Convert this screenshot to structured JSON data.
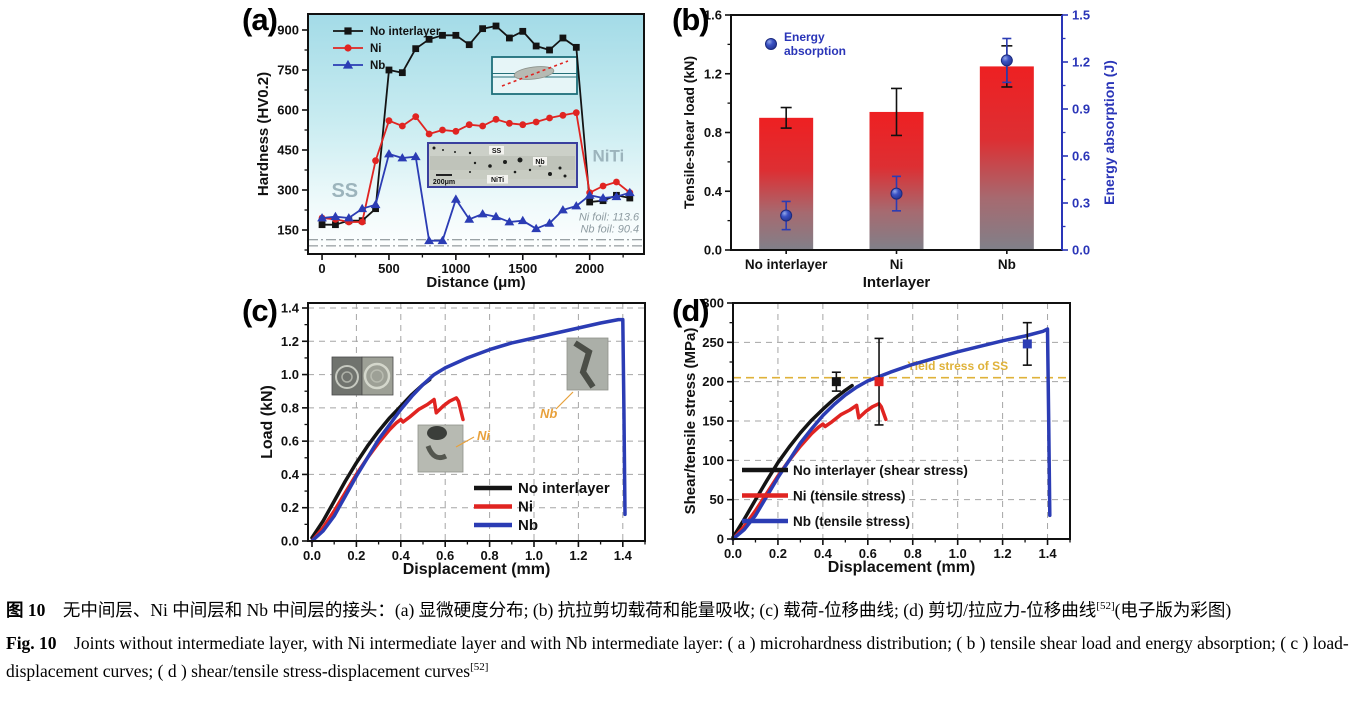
{
  "figure": {
    "panels": {
      "a": {
        "tag": "(a)"
      },
      "b": {
        "tag": "(b)"
      },
      "c": {
        "tag": "(c)"
      },
      "d": {
        "tag": "(d)"
      }
    }
  },
  "colors": {
    "series_black": "#141414",
    "series_red": "#e02421",
    "series_blue": "#2b3cb4",
    "axis_blue": "#2a35b8",
    "label_gray": "#9cb4bc",
    "foil_gray": "#8d9ba1",
    "yellow": "#dfb23a",
    "grid_gray": "#a5a5a5",
    "bar_top": "#ee2022",
    "bar_bottom": "#808089",
    "annotation_orange": "#e8a13c",
    "teal_top": "#a3dbe7"
  },
  "chart_data": [
    {
      "id": "a",
      "type": "line",
      "xlabel": "Distance (μm)",
      "ylabel": "Hardness (HV0.2)",
      "xlim": [
        -105,
        2406
      ],
      "ylim": [
        60,
        960
      ],
      "xticks": [
        "0",
        "500",
        "1000",
        "1500",
        "2000"
      ],
      "yticks": [
        "150",
        "300",
        "450",
        "600",
        "750",
        "900"
      ],
      "legend": [
        "No interlayer",
        "Ni",
        "Nb"
      ],
      "series": [
        {
          "name": "No interlayer",
          "color": "black",
          "marker": "square",
          "x": [
            0,
            100,
            200,
            300,
            400,
            500,
            600,
            700,
            800,
            900,
            1000,
            1100,
            1200,
            1300,
            1400,
            1500,
            1600,
            1700,
            1800,
            1900,
            2000,
            2100,
            2200,
            2300
          ],
          "y": [
            170,
            170,
            185,
            185,
            230,
            750,
            740,
            830,
            865,
            880,
            880,
            845,
            905,
            915,
            870,
            895,
            840,
            825,
            870,
            835,
            255,
            260,
            280,
            270
          ]
        },
        {
          "name": "Ni",
          "color": "red",
          "marker": "circle",
          "x": [
            0,
            100,
            200,
            300,
            400,
            500,
            600,
            700,
            800,
            900,
            1000,
            1100,
            1200,
            1300,
            1400,
            1500,
            1600,
            1700,
            1800,
            1900,
            2000,
            2100,
            2200,
            2300
          ],
          "y": [
            195,
            190,
            180,
            180,
            410,
            560,
            540,
            575,
            510,
            525,
            520,
            545,
            540,
            565,
            550,
            545,
            555,
            570,
            580,
            590,
            290,
            315,
            330,
            290
          ]
        },
        {
          "name": "Nb",
          "color": "blue",
          "marker": "triangle",
          "x": [
            0,
            100,
            200,
            300,
            400,
            500,
            600,
            700,
            800,
            900,
            1000,
            1100,
            1200,
            1300,
            1400,
            1500,
            1600,
            1700,
            1800,
            1900,
            2000,
            2100,
            2200,
            2300
          ],
          "y": [
            195,
            200,
            195,
            230,
            245,
            435,
            420,
            425,
            110,
            110,
            265,
            190,
            210,
            200,
            180,
            185,
            155,
            175,
            225,
            240,
            280,
            270,
            275,
            290
          ]
        }
      ],
      "ref_lines": [
        {
          "y": 113.6
        },
        {
          "y": 90.4
        }
      ],
      "ref_notes": [
        "Ni foil: 113.6",
        "Nb foil: 90.4"
      ],
      "region_labels": [
        {
          "text": "SS"
        },
        {
          "text": "NiTi"
        }
      ],
      "inset_sem_labels": [
        "SS",
        "Nb",
        "NiTi",
        "200μm"
      ]
    },
    {
      "id": "b",
      "type": "bar",
      "xlabel": "Interlayer",
      "ylabel_left": "Tensile-shear load (kN)",
      "ylabel_right": "Energy absorption (J)",
      "categories": [
        "No interlayer",
        "Ni",
        "Nb"
      ],
      "bar_values": [
        0.9,
        0.94,
        1.25
      ],
      "bar_errors": [
        0.07,
        0.16,
        0.14
      ],
      "points": [
        0.22,
        0.36,
        1.21
      ],
      "point_errors": [
        0.09,
        0.11,
        0.14
      ],
      "ylim_left": [
        0,
        1.6
      ],
      "yticks_left": [
        "0.0",
        "0.4",
        "0.8",
        "1.2",
        "1.6"
      ],
      "ylim_right": [
        0,
        1.5
      ],
      "yticks_right": [
        "0.0",
        "0.3",
        "0.6",
        "0.9",
        "1.2",
        "1.5"
      ],
      "legend": "Energy absorption"
    },
    {
      "id": "c",
      "type": "line",
      "xlabel": "Displacement (mm)",
      "ylabel": "Load (kN)",
      "xlim": [
        -0.018,
        1.5
      ],
      "ylim": [
        0,
        1.43
      ],
      "grid": true,
      "xticks": [
        "0.0",
        "0.2",
        "0.4",
        "0.6",
        "0.8",
        "1.0",
        "1.2",
        "1.4"
      ],
      "yticks": [
        "0.0",
        "0.2",
        "0.4",
        "0.6",
        "0.8",
        "1.0",
        "1.2",
        "1.4"
      ],
      "legend": [
        "No interlayer",
        "Ni",
        "Nb"
      ],
      "series": [
        {
          "name": "No interlayer",
          "color": "black",
          "x": [
            0,
            0.05,
            0.1,
            0.15,
            0.2,
            0.25,
            0.3,
            0.35,
            0.4,
            0.45,
            0.5,
            0.53
          ],
          "y": [
            0.02,
            0.12,
            0.24,
            0.36,
            0.47,
            0.57,
            0.66,
            0.74,
            0.81,
            0.88,
            0.94,
            0.97
          ]
        },
        {
          "name": "Ni",
          "color": "red",
          "x": [
            0,
            0.05,
            0.1,
            0.15,
            0.2,
            0.25,
            0.3,
            0.35,
            0.38,
            0.4,
            0.41,
            0.44,
            0.48,
            0.52,
            0.55,
            0.56,
            0.59,
            0.62,
            0.65,
            0.66,
            0.68
          ],
          "y": [
            0,
            0.08,
            0.18,
            0.29,
            0.4,
            0.5,
            0.59,
            0.67,
            0.71,
            0.73,
            0.715,
            0.745,
            0.79,
            0.82,
            0.85,
            0.77,
            0.81,
            0.84,
            0.86,
            0.84,
            0.73
          ]
        },
        {
          "name": "Nb",
          "color": "blue",
          "x": [
            0,
            0.05,
            0.1,
            0.15,
            0.2,
            0.25,
            0.3,
            0.35,
            0.4,
            0.45,
            0.5,
            0.55,
            0.6,
            0.7,
            0.8,
            0.9,
            1.0,
            1.1,
            1.2,
            1.3,
            1.38,
            1.4,
            1.405,
            1.41
          ],
          "y": [
            0,
            0.06,
            0.15,
            0.27,
            0.39,
            0.5,
            0.61,
            0.7,
            0.79,
            0.87,
            0.94,
            1.0,
            1.04,
            1.1,
            1.15,
            1.19,
            1.22,
            1.25,
            1.28,
            1.31,
            1.33,
            1.33,
            0.8,
            0.16
          ]
        }
      ],
      "annotations": [
        {
          "text": "Ni"
        },
        {
          "text": "Nb"
        }
      ]
    },
    {
      "id": "d",
      "type": "line",
      "xlabel": "Displacement (mm)",
      "ylabel": "Shear/tensile stress (MPa)",
      "xlim": [
        0,
        1.5
      ],
      "ylim": [
        0,
        300
      ],
      "grid": true,
      "xticks": [
        "0.0",
        "0.2",
        "0.4",
        "0.6",
        "0.8",
        "1.0",
        "1.2",
        "1.4"
      ],
      "yticks": [
        "0",
        "50",
        "100",
        "150",
        "200",
        "250",
        "300"
      ],
      "legend": [
        "No interlayer (shear stress)",
        "Ni (tensile stress)",
        "Nb (tensile stress)"
      ],
      "series": [
        {
          "name": "No interlayer (shear stress)",
          "color": "black",
          "x": [
            0,
            0.05,
            0.1,
            0.15,
            0.2,
            0.25,
            0.3,
            0.35,
            0.4,
            0.45,
            0.5,
            0.53
          ],
          "y": [
            2,
            25,
            50,
            74,
            97,
            117,
            135,
            151,
            165,
            178,
            189,
            195
          ]
        },
        {
          "name": "Ni (tensile stress)",
          "color": "red",
          "x": [
            0,
            0.05,
            0.1,
            0.15,
            0.2,
            0.25,
            0.3,
            0.35,
            0.38,
            0.4,
            0.41,
            0.44,
            0.48,
            0.52,
            0.55,
            0.56,
            0.59,
            0.62,
            0.65,
            0.66,
            0.68
          ],
          "y": [
            0,
            16,
            36,
            58,
            80,
            100,
            118,
            134,
            142,
            146,
            143,
            149,
            158,
            164,
            170,
            154,
            162,
            168,
            172,
            168,
            152
          ]
        },
        {
          "name": "Nb (tensile stress)",
          "color": "blue",
          "x": [
            0,
            0.05,
            0.1,
            0.15,
            0.2,
            0.25,
            0.3,
            0.35,
            0.4,
            0.45,
            0.5,
            0.55,
            0.6,
            0.7,
            0.8,
            0.9,
            1.0,
            1.1,
            1.2,
            1.3,
            1.38,
            1.4,
            1.405,
            1.41
          ],
          "y": [
            0,
            12,
            30,
            54,
            78,
            100,
            122,
            140,
            157,
            171,
            183,
            193,
            201,
            212,
            222,
            230,
            238,
            245,
            252,
            258,
            264,
            267,
            150,
            30
          ]
        }
      ],
      "yield_line": {
        "y": 205,
        "label": "Yield stress of SS"
      },
      "points": [
        {
          "x": 0.46,
          "y": 200,
          "err": 12,
          "color": "black"
        },
        {
          "x": 0.65,
          "y": 200,
          "err": 55,
          "color": "red"
        },
        {
          "x": 1.31,
          "y": 248,
          "err": 27,
          "color": "blue"
        }
      ]
    }
  ],
  "caption": {
    "zh": {
      "label": "图 10",
      "text": "　无中间层、Ni 中间层和 Nb 中间层的接头：(a) 显微硬度分布; (b) 抗拉剪切载荷和能量吸收; (c) 载荷-位移曲线; (d) 剪切/拉应力-位移曲线",
      "sup": "[52]",
      "tail": "(电子版为彩图)"
    },
    "en": {
      "label": "Fig. 10",
      "text": "　Joints without intermediate layer, with Ni intermediate layer and with Nb intermediate layer: ( a ) microhardness distribution; ( b ) tensile shear load and energy absorption; ( c ) load-displacement curves; ( d ) shear/tensile stress-displacement curves",
      "sup": "[52]",
      "tail": ""
    }
  }
}
